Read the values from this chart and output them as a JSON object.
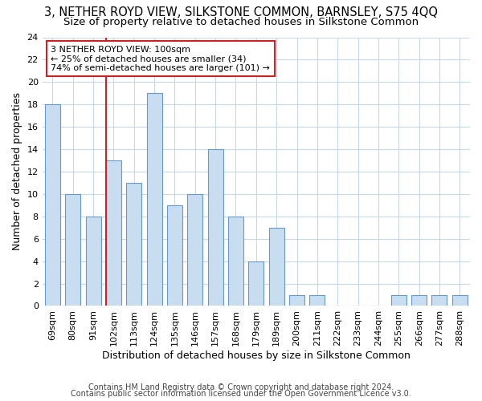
{
  "title": "3, NETHER ROYD VIEW, SILKSTONE COMMON, BARNSLEY, S75 4QQ",
  "subtitle": "Size of property relative to detached houses in Silkstone Common",
  "xlabel": "Distribution of detached houses by size in Silkstone Common",
  "ylabel": "Number of detached properties",
  "footnote1": "Contains HM Land Registry data © Crown copyright and database right 2024.",
  "footnote2": "Contains public sector information licensed under the Open Government Licence v3.0.",
  "categories": [
    "69sqm",
    "80sqm",
    "91sqm",
    "102sqm",
    "113sqm",
    "124sqm",
    "135sqm",
    "146sqm",
    "157sqm",
    "168sqm",
    "179sqm",
    "189sqm",
    "200sqm",
    "211sqm",
    "222sqm",
    "233sqm",
    "244sqm",
    "255sqm",
    "266sqm",
    "277sqm",
    "288sqm"
  ],
  "values": [
    18,
    10,
    8,
    13,
    11,
    19,
    9,
    10,
    14,
    8,
    4,
    7,
    1,
    1,
    0,
    0,
    0,
    1,
    1,
    1,
    1
  ],
  "bar_color": "#c8ddf0",
  "bar_edge_color": "#6699cc",
  "red_line_color": "#cc2222",
  "red_line_index": 3,
  "annotation_text": "3 NETHER ROYD VIEW: 100sqm\n← 25% of detached houses are smaller (34)\n74% of semi-detached houses are larger (101) →",
  "annotation_box_color": "#ffffff",
  "annotation_box_edge": "#cc2222",
  "ylim": [
    0,
    24
  ],
  "yticks": [
    0,
    2,
    4,
    6,
    8,
    10,
    12,
    14,
    16,
    18,
    20,
    22,
    24
  ],
  "title_fontsize": 10.5,
  "subtitle_fontsize": 9.5,
  "axis_label_fontsize": 9,
  "tick_fontsize": 8,
  "annotation_fontsize": 8,
  "footnote_fontsize": 7,
  "background_color": "#ffffff",
  "grid_color": "#c8d8e8",
  "bar_width": 0.75
}
